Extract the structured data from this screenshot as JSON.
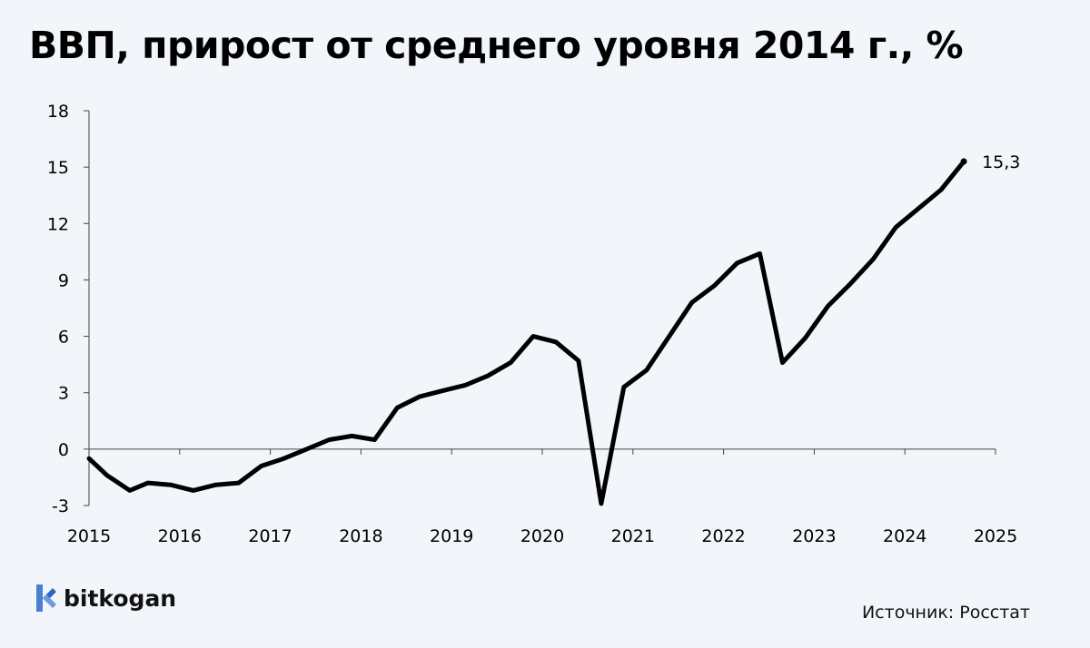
{
  "chart_data": {
    "type": "line",
    "title": "ВВП, прирост от среднего уровня 2014 г., %",
    "xlabel": "",
    "ylabel": "",
    "xlim": [
      2015,
      2025
    ],
    "ylim": [
      -3,
      18
    ],
    "yticks": [
      "-3",
      "0",
      "3",
      "6",
      "9",
      "12",
      "15",
      "18"
    ],
    "xticks": [
      "2015",
      "2016",
      "2017",
      "2018",
      "2019",
      "2020",
      "2021",
      "2022",
      "2023",
      "2024",
      "2025"
    ],
    "series": [
      {
        "color": "#000000",
        "x": [
          2015.0,
          2015.2,
          2015.45,
          2015.65,
          2015.9,
          2016.15,
          2016.4,
          2016.65,
          2016.9,
          2017.15,
          2017.4,
          2017.65,
          2017.9,
          2018.15,
          2018.4,
          2018.65,
          2018.9,
          2019.15,
          2019.4,
          2019.65,
          2019.9,
          2020.15,
          2020.4,
          2020.65,
          2020.9,
          2021.15,
          2021.4,
          2021.65,
          2021.9,
          2022.15,
          2022.4,
          2022.65,
          2022.9,
          2023.15,
          2023.4,
          2023.65,
          2023.9,
          2024.15,
          2024.4,
          2024.65
        ],
        "y": [
          -0.5,
          -1.4,
          -2.2,
          -1.8,
          -1.9,
          -2.2,
          -1.9,
          -1.8,
          -0.9,
          -0.5,
          0.0,
          0.5,
          0.7,
          0.5,
          2.2,
          2.8,
          3.1,
          3.4,
          3.9,
          4.6,
          6.0,
          5.7,
          4.7,
          -2.9,
          3.3,
          4.2,
          6.0,
          7.8,
          8.7,
          9.9,
          10.4,
          4.6,
          5.9,
          7.6,
          8.8,
          10.1,
          11.8,
          12.8,
          13.8,
          15.3
        ]
      }
    ],
    "annotations": [
      {
        "text": "15,3"
      }
    ]
  },
  "logo": {
    "text": "bitkogan",
    "icon": "bitkogan-logo-icon"
  },
  "source": {
    "text": "Источник: Росстат"
  }
}
